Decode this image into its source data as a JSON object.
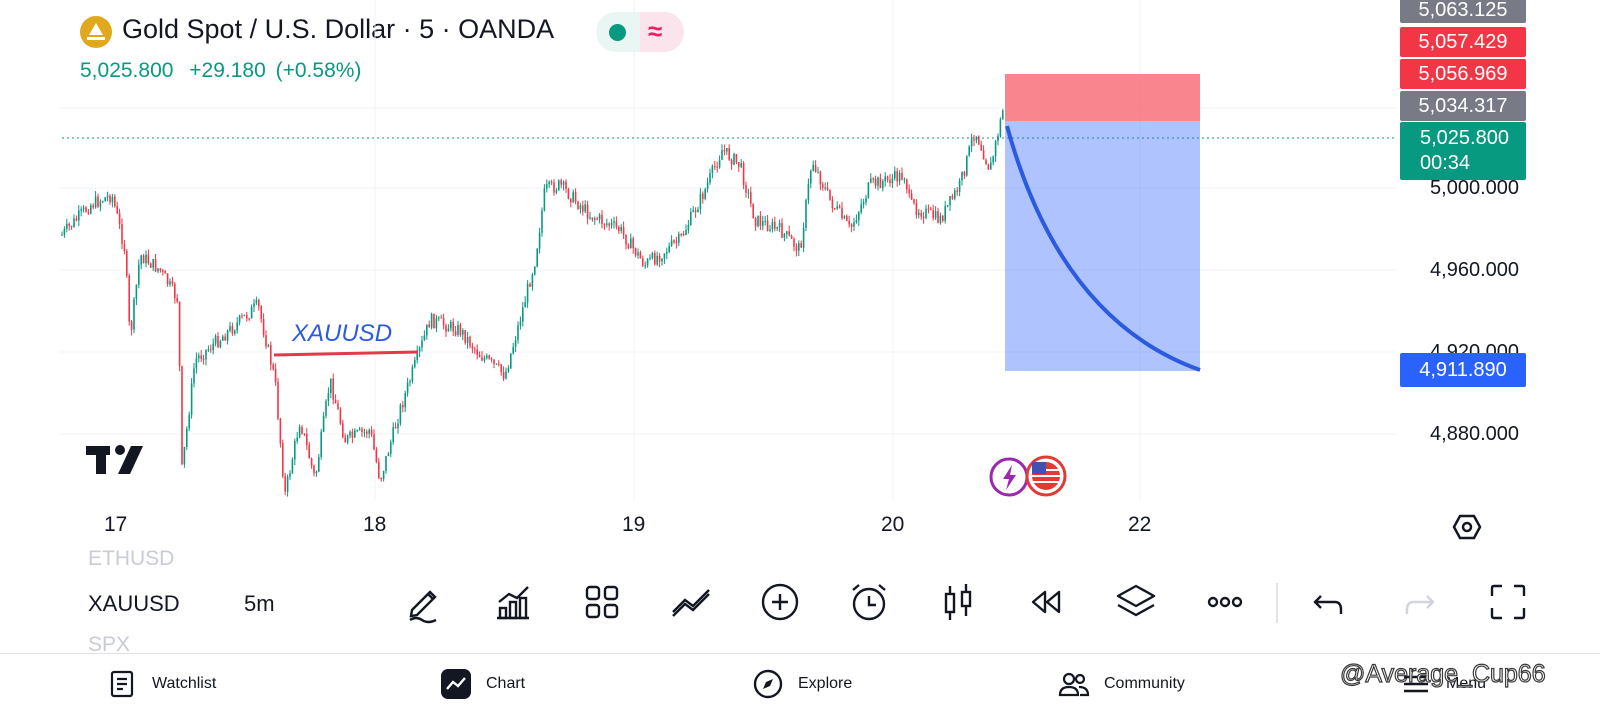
{
  "header": {
    "title": "Gold Spot / U.S. Dollar · 5 · OANDA",
    "price": "5,025.800",
    "change": "+29.180",
    "change_pct": "(+0.58%)",
    "status_dot_color": "#089981",
    "wave_symbol": "≈"
  },
  "chart": {
    "annotation": "XAUUSD",
    "price_labels": [
      "5,000.000",
      "4,960.000",
      "4,920.000",
      "4,880.000"
    ],
    "tags": {
      "top": "5,063.125",
      "stop1": "5,057.429",
      "stop2": "5,056.969",
      "entry": "5,034.317",
      "last": "5,025.800",
      "countdown": "00:34",
      "target": "4,911.890"
    },
    "dates": [
      "17",
      "18",
      "19",
      "20",
      "22"
    ],
    "colors": {
      "up": "#089981",
      "down": "#f23645",
      "target": "#2962ff",
      "stop": "#f7525f"
    }
  },
  "toolbar": {
    "symbol": "XAUUSD",
    "interval": "5m",
    "prev_symbol": "ETHUSD",
    "next_symbol": "SPX",
    "icons": [
      "pencil-icon",
      "indicators-icon",
      "grid-icon",
      "drawing-tools-icon",
      "add-icon",
      "alarm-icon",
      "candles-icon",
      "replay-icon",
      "layers-icon",
      "more-icon",
      "undo-icon",
      "redo-icon",
      "fullscreen-icon"
    ]
  },
  "nav": {
    "watchlist": "Watchlist",
    "chart": "Chart",
    "explore": "Explore",
    "community": "Community",
    "menu": "Menu"
  },
  "watermark": "@Average_Cup66"
}
